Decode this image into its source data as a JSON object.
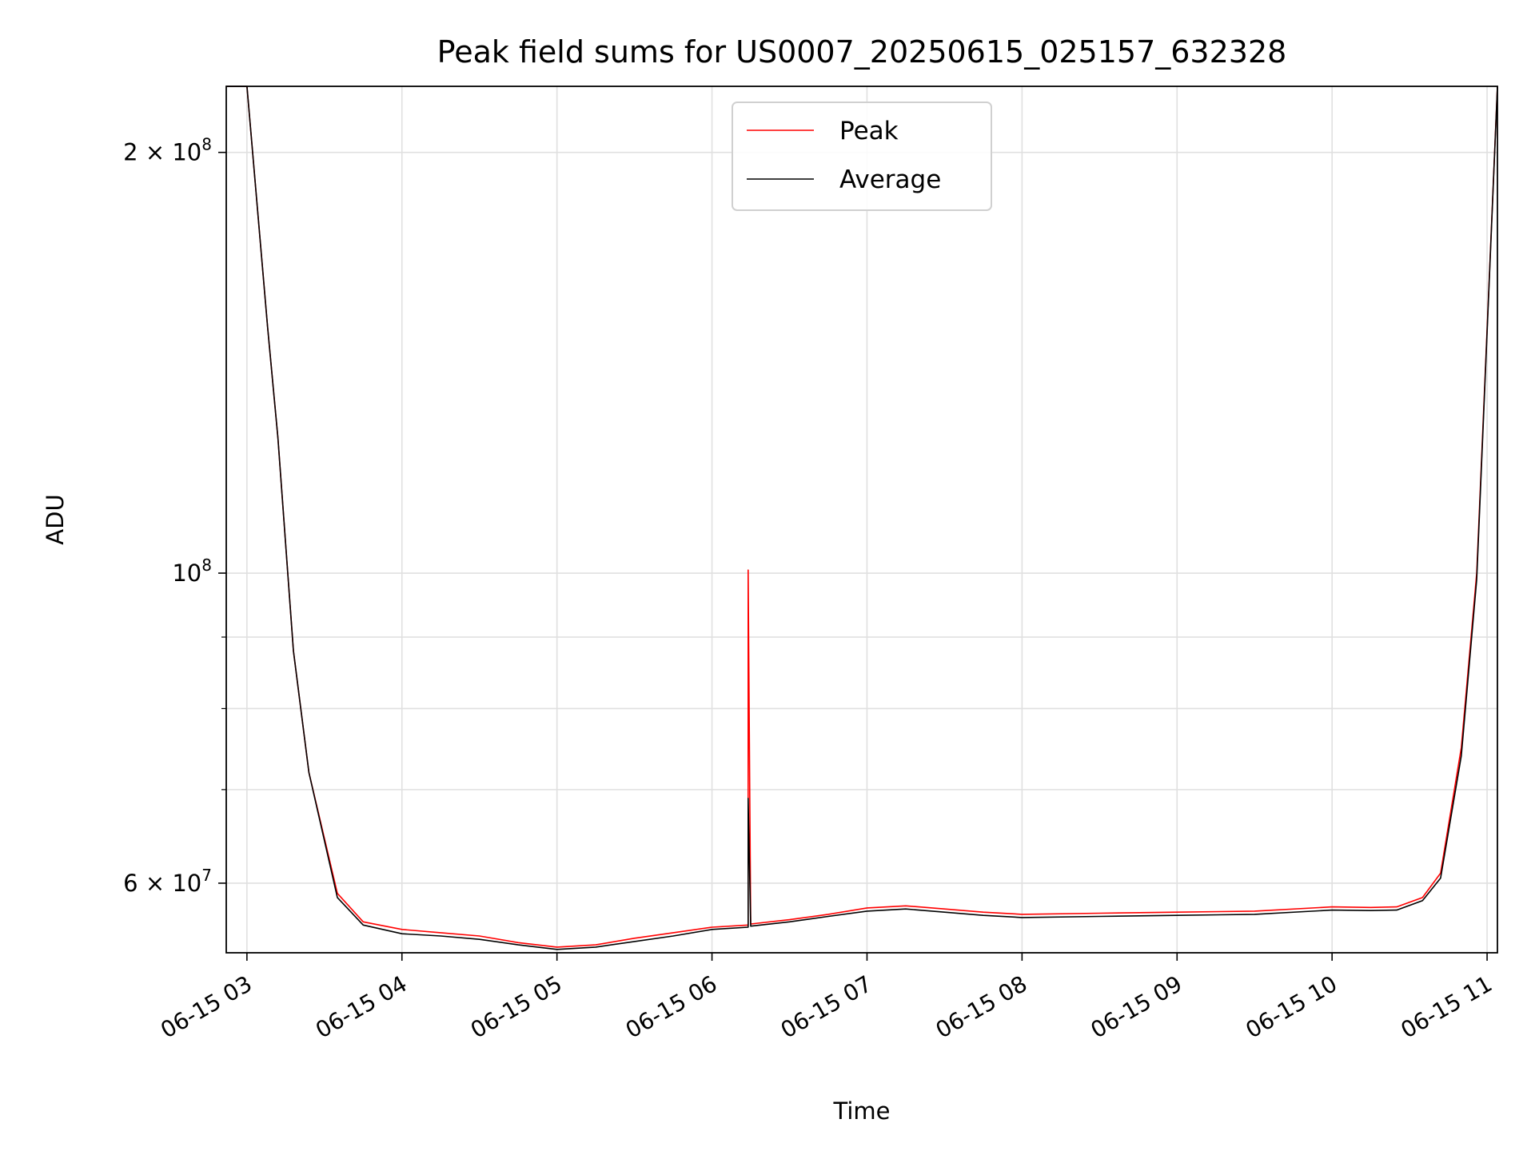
{
  "chart_data": {
    "type": "line",
    "title": "Peak field sums for US0007_20250615_025157_632328",
    "xlabel": "Time",
    "ylabel": "ADU",
    "y_scale": "log",
    "ylim": [
      53500000,
      223000000
    ],
    "xlim": [
      "2025-06-15 02:52",
      "2025-06-15 11:04"
    ],
    "grid": true,
    "legend_position": "top-center",
    "x_ticks": [
      "06-15 03",
      "06-15 04",
      "06-15 05",
      "06-15 06",
      "06-15 07",
      "06-15 08",
      "06-15 09",
      "06-15 10",
      "06-15 11"
    ],
    "y_tick_labels": [
      {
        "value": 200000000,
        "mantissa": "2",
        "exponent": "8"
      },
      {
        "value": 100000000,
        "mantissa": "",
        "exponent": "8"
      },
      {
        "value": 60000000,
        "mantissa": "6",
        "exponent": "7"
      }
    ],
    "y_minor_ticks": [
      70000000,
      80000000,
      90000000
    ],
    "series": [
      {
        "name": "Peak",
        "color": "#ff0000",
        "x": [
          "2025-06-15 02:52",
          "2025-06-15 03:00",
          "2025-06-15 03:08",
          "2025-06-15 03:12",
          "2025-06-15 03:18",
          "2025-06-15 03:24",
          "2025-06-15 03:35",
          "2025-06-15 03:45",
          "2025-06-15 04:00",
          "2025-06-15 04:15",
          "2025-06-15 04:30",
          "2025-06-15 04:45",
          "2025-06-15 05:00",
          "2025-06-15 05:15",
          "2025-06-15 05:30",
          "2025-06-15 05:45",
          "2025-06-15 06:00",
          "2025-06-15 06:14",
          "2025-06-15 06:14",
          "2025-06-15 06:15",
          "2025-06-15 06:30",
          "2025-06-15 06:45",
          "2025-06-15 07:00",
          "2025-06-15 07:15",
          "2025-06-15 07:30",
          "2025-06-15 07:45",
          "2025-06-15 08:00",
          "2025-06-15 08:30",
          "2025-06-15 09:00",
          "2025-06-15 09:30",
          "2025-06-15 10:00",
          "2025-06-15 10:15",
          "2025-06-15 10:25",
          "2025-06-15 10:35",
          "2025-06-15 10:42",
          "2025-06-15 10:50",
          "2025-06-15 10:56",
          "2025-06-15 11:04"
        ],
        "y": [
          223000000,
          223000000,
          150000000,
          125000000,
          88000000,
          72000000,
          59000000,
          56300000,
          55600000,
          55300000,
          55000000,
          54400000,
          54000000,
          54200000,
          54800000,
          55300000,
          55800000,
          56000000,
          100500000,
          56100000,
          56500000,
          57000000,
          57600000,
          57800000,
          57500000,
          57200000,
          57000000,
          57100000,
          57200000,
          57300000,
          57700000,
          57650000,
          57700000,
          58600000,
          61000000,
          75000000,
          100000000,
          223000000
        ]
      },
      {
        "name": "Average",
        "color": "#000000",
        "x": [
          "2025-06-15 02:52",
          "2025-06-15 03:00",
          "2025-06-15 03:08",
          "2025-06-15 03:12",
          "2025-06-15 03:18",
          "2025-06-15 03:24",
          "2025-06-15 03:35",
          "2025-06-15 03:45",
          "2025-06-15 04:00",
          "2025-06-15 04:15",
          "2025-06-15 04:30",
          "2025-06-15 04:45",
          "2025-06-15 05:00",
          "2025-06-15 05:15",
          "2025-06-15 05:30",
          "2025-06-15 05:45",
          "2025-06-15 06:00",
          "2025-06-15 06:14",
          "2025-06-15 06:14",
          "2025-06-15 06:15",
          "2025-06-15 06:30",
          "2025-06-15 06:45",
          "2025-06-15 07:00",
          "2025-06-15 07:15",
          "2025-06-15 07:30",
          "2025-06-15 07:45",
          "2025-06-15 08:00",
          "2025-06-15 08:30",
          "2025-06-15 09:00",
          "2025-06-15 09:30",
          "2025-06-15 10:00",
          "2025-06-15 10:15",
          "2025-06-15 10:25",
          "2025-06-15 10:35",
          "2025-06-15 10:42",
          "2025-06-15 10:50",
          "2025-06-15 10:56",
          "2025-06-15 11:04"
        ],
        "y": [
          223000000,
          223000000,
          150000000,
          125000000,
          88000000,
          72000000,
          58600000,
          56000000,
          55200000,
          55000000,
          54700000,
          54200000,
          53800000,
          54000000,
          54500000,
          55000000,
          55600000,
          55800000,
          69000000,
          55900000,
          56300000,
          56800000,
          57300000,
          57500000,
          57200000,
          56900000,
          56700000,
          56800000,
          56900000,
          57000000,
          57400000,
          57350000,
          57400000,
          58300000,
          60500000,
          74000000,
          99000000,
          223000000
        ]
      }
    ]
  }
}
